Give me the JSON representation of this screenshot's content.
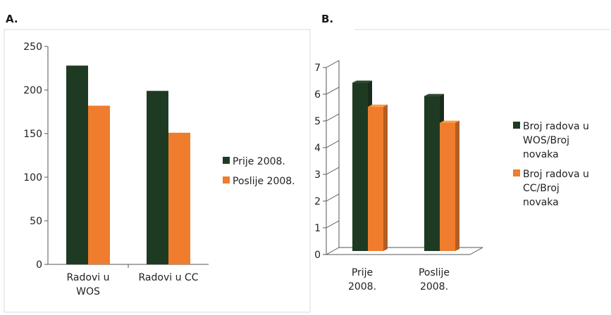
{
  "chart_data": [
    {
      "type": "bar",
      "panel_label": "A.",
      "categories": [
        "Radovi u\nWOS",
        "Radovi u CC"
      ],
      "series": [
        {
          "name": "Prije 2008.",
          "values": [
            228,
            199
          ],
          "color": "#1f3a22"
        },
        {
          "name": "Poslije 2008.",
          "values": [
            182,
            151
          ],
          "color": "#f07c2e"
        }
      ],
      "ylim": [
        0,
        250
      ],
      "yticks": [
        0,
        50,
        100,
        150,
        200,
        250
      ],
      "grid": false,
      "legend_position": "right"
    },
    {
      "type": "bar",
      "style": "3d",
      "panel_label": "B.",
      "categories": [
        "Prije\n2008.",
        "Poslije\n2008."
      ],
      "series": [
        {
          "name": "Broj radova u\nWOS/Broj\nnovaka",
          "values": [
            6.3,
            5.8
          ],
          "color": "#1f3a22"
        },
        {
          "name": "Broj radova u\nCC/Broj\nnovaka",
          "values": [
            5.4,
            4.8
          ],
          "color": "#f07c2e"
        }
      ],
      "ylim": [
        0,
        7
      ],
      "yticks": [
        0,
        1,
        2,
        3,
        4,
        5,
        6,
        7
      ],
      "grid": false,
      "legend_position": "right"
    }
  ]
}
